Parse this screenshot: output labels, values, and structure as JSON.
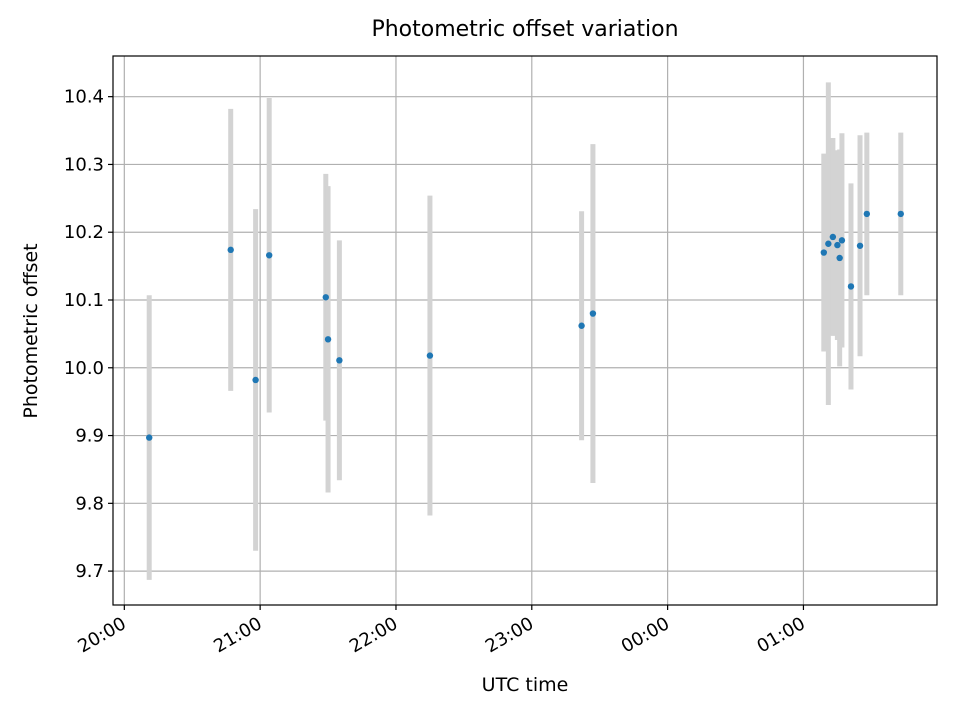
{
  "chart_data": {
    "type": "scatter",
    "title": "Photometric offset variation",
    "xlabel": "UTC time",
    "ylabel": "Photometric offset",
    "x_ticks": [
      "20:00",
      "21:00",
      "22:00",
      "23:00",
      "00:00",
      "01:00"
    ],
    "y_ticks": [
      "9.7",
      "9.8",
      "9.9",
      "10.0",
      "10.1",
      "10.2",
      "10.3",
      "10.4"
    ],
    "ylim": [
      9.65,
      10.46
    ],
    "xlim": [
      "19:55",
      "01:59"
    ],
    "grid": true,
    "colors": {
      "points": "#1f77b4",
      "errorbars": "#d3d3d3",
      "grid": "#b0b0b0"
    },
    "points": [
      {
        "x": "20:11",
        "y": 9.897,
        "err": 0.21
      },
      {
        "x": "20:47",
        "y": 10.174,
        "err": 0.208
      },
      {
        "x": "20:58",
        "y": 9.982,
        "err": 0.252
      },
      {
        "x": "21:04",
        "y": 10.166,
        "err": 0.232
      },
      {
        "x": "21:29",
        "y": 10.104,
        "err": 0.182
      },
      {
        "x": "21:30",
        "y": 10.042,
        "err": 0.226
      },
      {
        "x": "21:35",
        "y": 10.011,
        "err": 0.177
      },
      {
        "x": "22:15",
        "y": 10.018,
        "err": 0.236
      },
      {
        "x": "23:22",
        "y": 10.062,
        "err": 0.169
      },
      {
        "x": "23:27",
        "y": 10.08,
        "err": 0.25
      },
      {
        "x": "01:09",
        "y": 10.17,
        "err": 0.146
      },
      {
        "x": "01:11",
        "y": 10.183,
        "err": 0.238
      },
      {
        "x": "01:13",
        "y": 10.193,
        "err": 0.146
      },
      {
        "x": "01:15",
        "y": 10.181,
        "err": 0.14
      },
      {
        "x": "01:16",
        "y": 10.162,
        "err": 0.16
      },
      {
        "x": "01:17",
        "y": 10.188,
        "err": 0.158
      },
      {
        "x": "01:21",
        "y": 10.12,
        "err": 0.152
      },
      {
        "x": "01:25",
        "y": 10.18,
        "err": 0.163
      },
      {
        "x": "01:28",
        "y": 10.227,
        "err": 0.12
      },
      {
        "x": "01:43",
        "y": 10.227,
        "err": 0.12
      }
    ]
  }
}
